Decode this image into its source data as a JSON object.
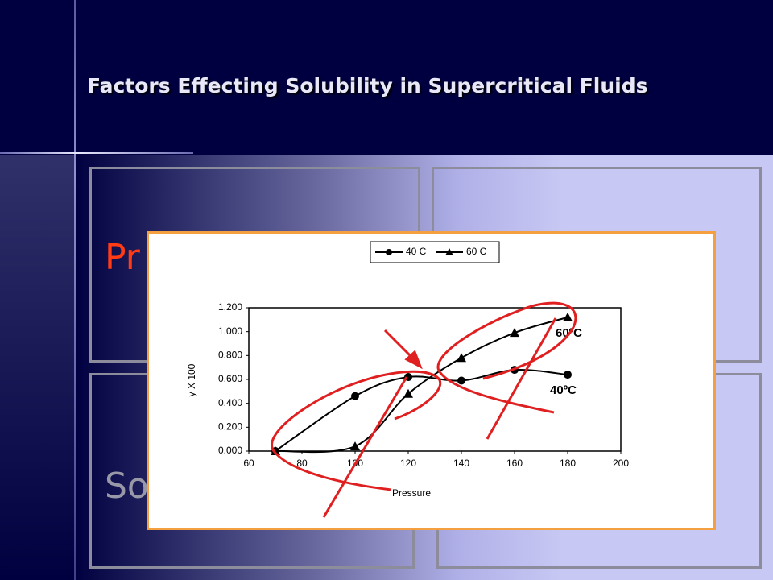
{
  "slide": {
    "title": "Factors Effecting Solubility in Supercritical Fluids",
    "panel_texts": [
      "Pr",
      "Sol"
    ]
  },
  "chart_data": {
    "type": "line",
    "x_label": "Pressure",
    "y_label": "y X 100",
    "x": [
      70,
      100,
      120,
      140,
      160,
      180
    ],
    "series": [
      {
        "name": "40 C",
        "color": "#000000",
        "marker": "circle",
        "values": [
          0.0,
          0.46,
          0.62,
          0.59,
          0.68,
          0.64
        ]
      },
      {
        "name": "60 C",
        "color": "#000000",
        "marker": "triangle",
        "values": [
          0.0,
          0.04,
          0.48,
          0.78,
          0.99,
          1.12
        ]
      }
    ],
    "xlim": [
      60,
      200
    ],
    "xticks": [
      60,
      80,
      100,
      120,
      140,
      160,
      180,
      200
    ],
    "ylim": [
      0,
      1.2
    ],
    "yticks": [
      {
        "value": 0,
        "label": "0.000"
      },
      {
        "value": 0.2,
        "label": "0.200"
      },
      {
        "value": 0.4,
        "label": "0.400"
      },
      {
        "value": 0.6,
        "label": "0.600"
      },
      {
        "value": 0.8,
        "label": "0.800"
      },
      {
        "value": 1.0,
        "label": "1.000"
      },
      {
        "value": 1.2,
        "label": "1.200"
      }
    ],
    "legend": "top",
    "annotations": [
      "60ºC",
      "40ºC"
    ]
  }
}
